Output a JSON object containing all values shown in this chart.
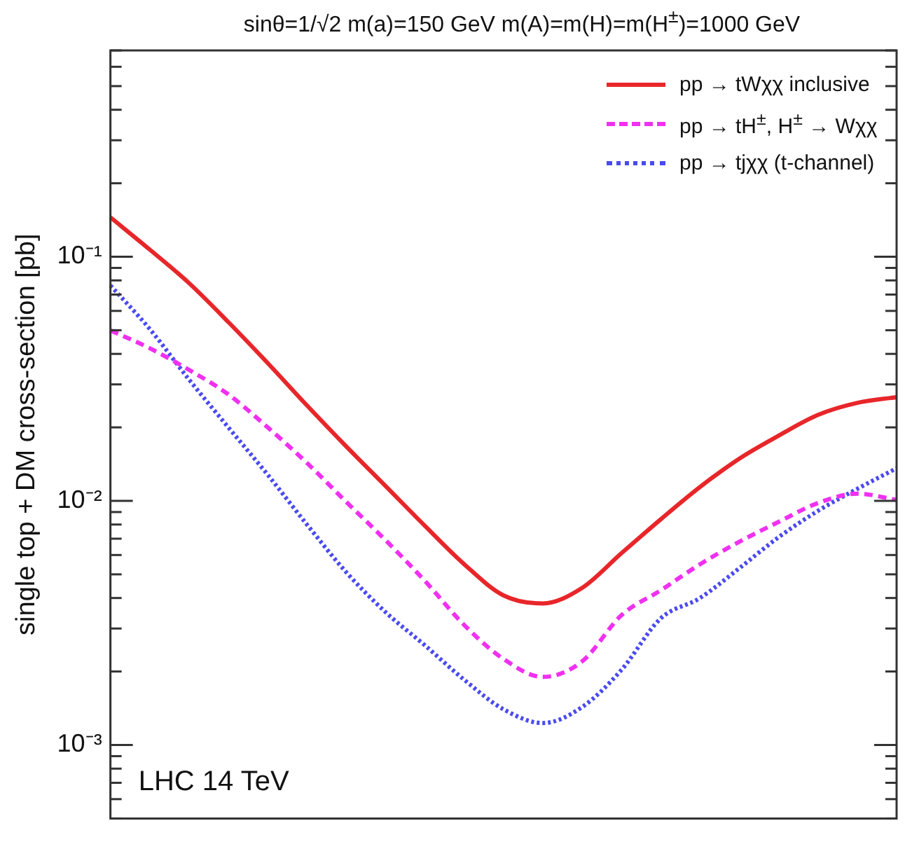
{
  "chart_data": {
    "type": "line",
    "title": "sinθ=1/√2 m(a)=150 GeV m(A)=m(H)=m(H$^{±}$)=1000 GeV",
    "ylabel": "single top + DM cross-section [pb]",
    "categories": [
      null,
      null,
      null,
      null,
      null,
      null,
      null,
      null,
      null,
      null,
      null,
      null,
      null,
      null,
      null,
      null,
      null,
      null,
      null,
      null,
      null
    ],
    "series": [
      {
        "name": "pp → tWχχ inclusive",
        "color": "#e8262a",
        "line_style": "solid",
        "values": [
          0.145,
          0.107,
          0.078,
          0.054,
          0.0367,
          0.0246,
          0.0167,
          0.0115,
          0.0079,
          0.0055,
          0.0041,
          0.0038,
          0.0044,
          0.0061,
          0.0084,
          0.0114,
          0.0149,
          0.0185,
          0.0225,
          0.0252,
          0.0266
        ]
      },
      {
        "name": "pp → tH$^{±}$, H$^{±}$ → Wχχ",
        "color": "#f030f0",
        "line_style": "dashed",
        "values": [
          0.0499,
          0.0422,
          0.0344,
          0.0273,
          0.02,
          0.0143,
          0.0099,
          0.0069,
          0.0047,
          0.0031,
          0.00225,
          0.0019,
          0.0022,
          0.0034,
          0.0043,
          0.0055,
          0.0068,
          0.0082,
          0.0098,
          0.0107,
          0.0101
        ]
      },
      {
        "name": "pp → tjχχ (t-channel)",
        "color": "#4a4af0",
        "line_style": "dotted",
        "values": [
          0.0763,
          0.0506,
          0.0314,
          0.02,
          0.0128,
          0.008,
          0.0051,
          0.0035,
          0.00256,
          0.00185,
          0.0014,
          0.00123,
          0.00143,
          0.00203,
          0.0033,
          0.004,
          0.0053,
          0.0071,
          0.0091,
          0.0112,
          0.0136
        ]
      }
    ],
    "log": "y",
    "ylim": [
      0.0005,
      0.7
    ],
    "yticks": [
      {
        "value": 0.0005,
        "label": null
      },
      {
        "value": 0.0006,
        "label": null
      },
      {
        "value": 0.0007,
        "label": null
      },
      {
        "value": 0.0008,
        "label": null
      },
      {
        "value": 0.0009,
        "label": null
      },
      {
        "value": 0.001,
        "label": "10⁻³"
      },
      {
        "value": 0.002,
        "label": null
      },
      {
        "value": 0.003,
        "label": null
      },
      {
        "value": 0.004,
        "label": null
      },
      {
        "value": 0.005,
        "label": null
      },
      {
        "value": 0.006,
        "label": null
      },
      {
        "value": 0.007,
        "label": null
      },
      {
        "value": 0.008,
        "label": null
      },
      {
        "value": 0.009,
        "label": null
      },
      {
        "value": 0.01,
        "label": "10⁻²"
      },
      {
        "value": 0.02,
        "label": null
      },
      {
        "value": 0.03,
        "label": null
      },
      {
        "value": 0.04,
        "label": null
      },
      {
        "value": 0.05,
        "label": null
      },
      {
        "value": 0.06,
        "label": null
      },
      {
        "value": 0.07,
        "label": null
      },
      {
        "value": 0.08,
        "label": null
      },
      {
        "value": 0.09,
        "label": null
      },
      {
        "value": 0.1,
        "label": "10⁻¹"
      },
      {
        "value": 0.2,
        "label": null
      },
      {
        "value": 0.3,
        "label": null
      },
      {
        "value": 0.4,
        "label": null
      },
      {
        "value": 0.5,
        "label": null
      },
      {
        "value": 0.6,
        "label": null
      },
      {
        "value": 0.7,
        "label": null
      }
    ],
    "tick_labels": "y",
    "grid": false,
    "legend": "top right",
    "marker": "none",
    "annotations": [
      "LHC 14 TeV"
    ]
  }
}
